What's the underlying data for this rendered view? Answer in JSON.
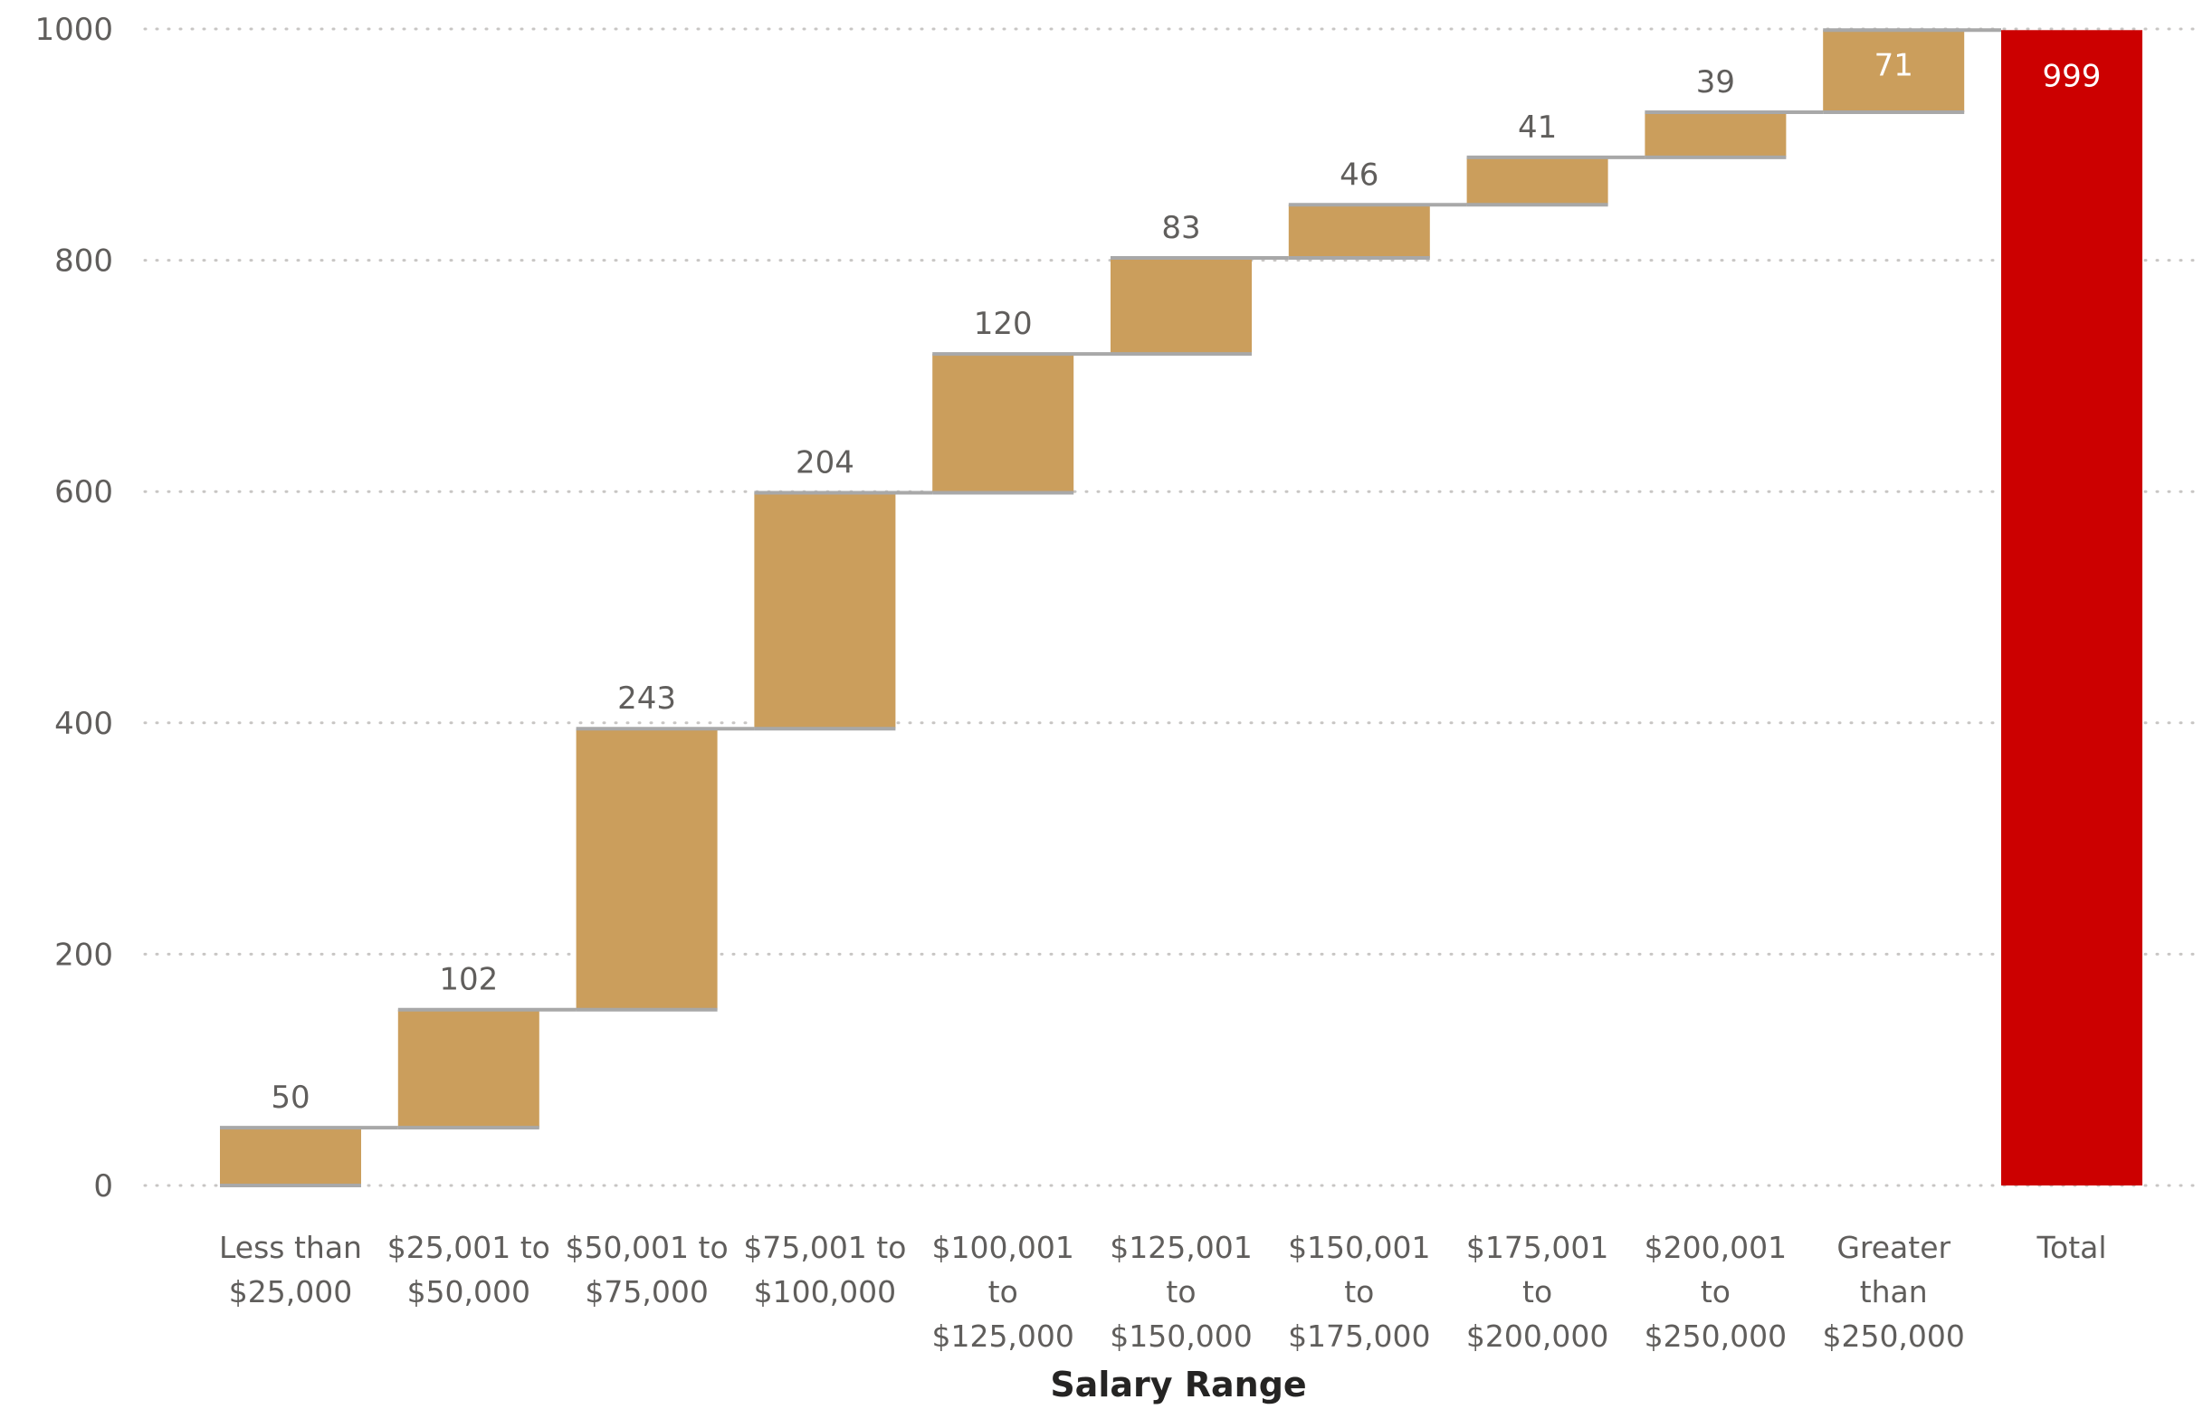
{
  "chart_data": {
    "type": "waterfall",
    "title": "",
    "xlabel": "Salary Range",
    "ylabel": "",
    "ylim": [
      0,
      1000
    ],
    "yticks": [
      0,
      200,
      400,
      600,
      800,
      1000
    ],
    "grid": true,
    "categories": [
      [
        "Less than",
        "$25,000"
      ],
      [
        "$25,001 to",
        "$50,000"
      ],
      [
        "$50,001 to",
        "$75,000"
      ],
      [
        "$75,001 to",
        "$100,000"
      ],
      [
        "$100,001",
        "to",
        "$125,000"
      ],
      [
        "$125,001",
        "to",
        "$150,000"
      ],
      [
        "$150,001",
        "to",
        "$175,000"
      ],
      [
        "$175,001",
        "to",
        "$200,000"
      ],
      [
        "$200,001",
        "to",
        "$250,000"
      ],
      [
        "Greater",
        "than",
        "$250,000"
      ]
    ],
    "values": [
      50,
      102,
      243,
      204,
      120,
      83,
      46,
      41,
      39,
      71
    ],
    "total": {
      "label": "Total",
      "value": 999
    },
    "colors": {
      "increase": "#cb9e5c",
      "total": "#cc0000",
      "connector": "#a8a8a8"
    }
  }
}
